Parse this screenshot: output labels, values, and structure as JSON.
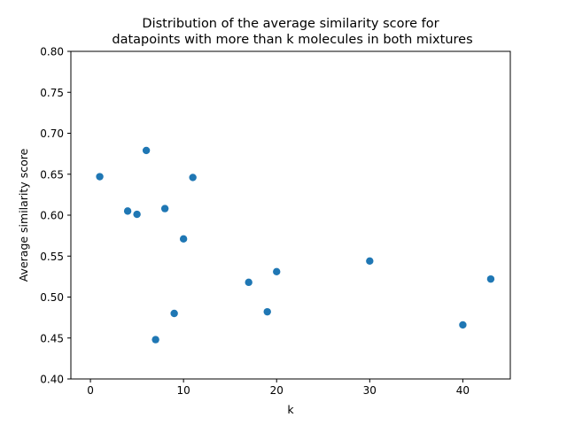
{
  "chart_data": {
    "type": "scatter",
    "title_lines": [
      "Distribution of the average similarity score for",
      "datapoints with more than k molecules in both mixtures"
    ],
    "xlabel": "k",
    "ylabel": "Average similarity score",
    "xlim": [
      -2.1,
      45.1
    ],
    "ylim": [
      0.4,
      0.8
    ],
    "xticks": [
      0,
      10,
      20,
      30,
      40
    ],
    "yticks": [
      0.4,
      0.45,
      0.5,
      0.55,
      0.6,
      0.65,
      0.7,
      0.75,
      0.8
    ],
    "xtick_labels": [
      "0",
      "10",
      "20",
      "30",
      "40"
    ],
    "ytick_labels": [
      "0.40",
      "0.45",
      "0.50",
      "0.55",
      "0.60",
      "0.65",
      "0.70",
      "0.75",
      "0.80"
    ],
    "grid": false,
    "marker_color": "#1f77b4",
    "points": [
      {
        "x": 1,
        "y": 0.647
      },
      {
        "x": 4,
        "y": 0.605
      },
      {
        "x": 5,
        "y": 0.601
      },
      {
        "x": 6,
        "y": 0.679
      },
      {
        "x": 7,
        "y": 0.448
      },
      {
        "x": 8,
        "y": 0.608
      },
      {
        "x": 9,
        "y": 0.48
      },
      {
        "x": 10,
        "y": 0.571
      },
      {
        "x": 11,
        "y": 0.646
      },
      {
        "x": 17,
        "y": 0.518
      },
      {
        "x": 19,
        "y": 0.482
      },
      {
        "x": 20,
        "y": 0.531
      },
      {
        "x": 30,
        "y": 0.544
      },
      {
        "x": 40,
        "y": 0.466
      },
      {
        "x": 43,
        "y": 0.522
      }
    ]
  }
}
